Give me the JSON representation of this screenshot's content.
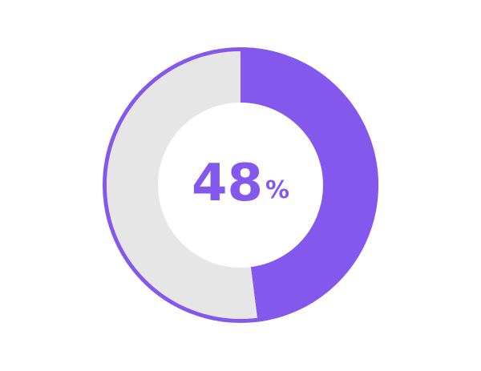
{
  "chart_data": {
    "type": "donut",
    "values": [
      48,
      52
    ],
    "colors": [
      "#8458ec",
      "#e6e6e6"
    ],
    "ring_color": "#8458ec",
    "center_value_text": "48",
    "center_unit_text": "%"
  }
}
